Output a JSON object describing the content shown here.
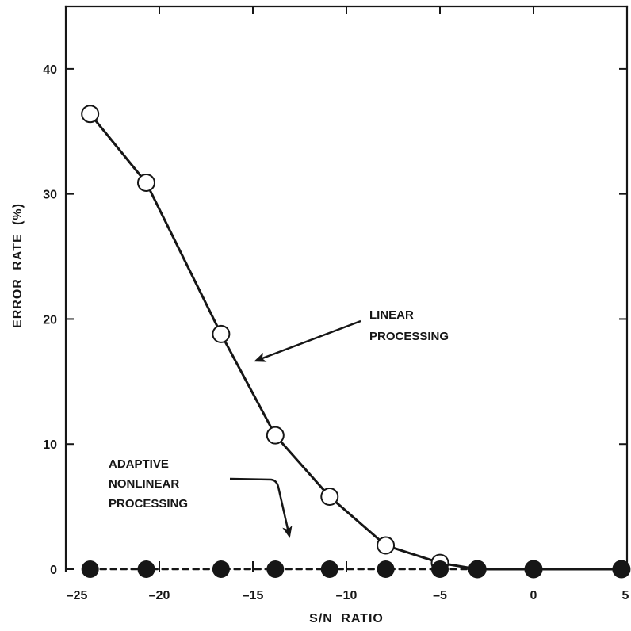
{
  "chart_data": {
    "type": "line",
    "xlabel": "S/N RATIO",
    "ylabel": "ERROR RATE (%)",
    "xlim": [
      -25,
      5
    ],
    "ylim": [
      0,
      45
    ],
    "xticks": [
      {
        "value": -25,
        "label": "–25"
      },
      {
        "value": -20,
        "label": "–20"
      },
      {
        "value": -15,
        "label": "–15"
      },
      {
        "value": -10,
        "label": "–10"
      },
      {
        "value": -5,
        "label": "–5"
      },
      {
        "value": 0,
        "label": "0"
      },
      {
        "value": 5,
        "label": "5"
      }
    ],
    "yticks": [
      {
        "value": 0,
        "label": "0"
      },
      {
        "value": 10,
        "label": "10"
      },
      {
        "value": 20,
        "label": "20"
      },
      {
        "value": 30,
        "label": "30"
      },
      {
        "value": 40,
        "label": "40"
      }
    ],
    "grid": false,
    "legend": false,
    "colors": {
      "ink": "#161616",
      "background": "#ffffff"
    },
    "series": [
      {
        "label": [
          "LINEAR",
          "PROCESSING"
        ],
        "marker_filled": false,
        "dashed": false,
        "x": [
          -23.7,
          -20.7,
          -16.7,
          -13.8,
          -10.9,
          -7.9,
          -5.0,
          -3.0,
          0,
          4.7
        ],
        "y": [
          36.4,
          30.9,
          18.8,
          10.7,
          5.8,
          1.9,
          0.5,
          0,
          0,
          0
        ]
      },
      {
        "label": [
          "ADAPTIVE",
          "NONLINEAR",
          "PROCESSING"
        ],
        "marker_filled": true,
        "dashed": true,
        "x": [
          -23.7,
          -20.7,
          -16.7,
          -13.8,
          -10.9,
          -7.9,
          -5.0,
          -3.0,
          0,
          4.7
        ],
        "y": [
          0,
          0,
          0,
          0,
          0,
          0,
          0,
          0,
          0,
          0
        ]
      }
    ]
  }
}
